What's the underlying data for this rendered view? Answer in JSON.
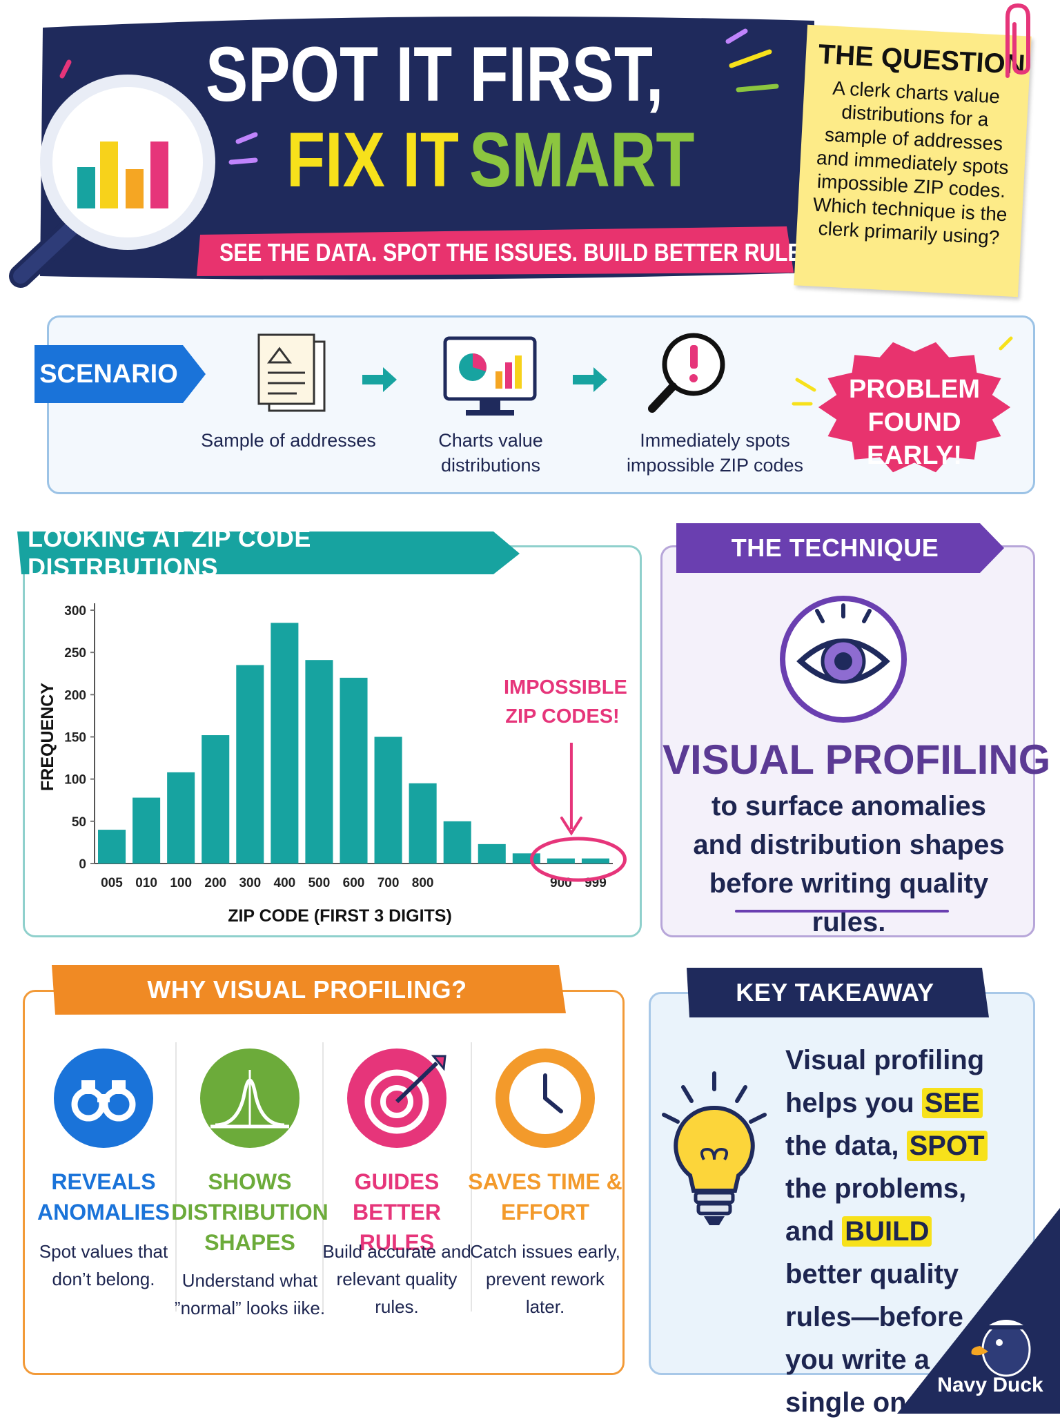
{
  "header": {
    "title_line1": "SPOT IT FIRST,",
    "title_fix": "FIX IT",
    "title_smart": "SMART",
    "tagline": "SEE THE DATA. SPOT THE ISSUES. BUILD BETTER RULES."
  },
  "question": {
    "heading": "THE QUESTION",
    "text": "A clerk charts value distributions for a sample of addresses and immediately spots impossible ZIP codes. Which technique is the clerk primarily using?"
  },
  "scenario": {
    "label": "SCENARIO",
    "steps": [
      "Sample of addresses",
      "Charts value distributions",
      "Immediately spots impossible ZIP codes"
    ],
    "burst": "PROBLEM FOUND EARLY!"
  },
  "chart_data": {
    "type": "bar",
    "title": "LOOKING AT ZIP CODE DISTRBUTIONS",
    "xlabel": "ZIP CODE (FIRST 3 DIGITS)",
    "ylabel": "FREQUENCY",
    "annotation": "IMPOSSIBLE ZIP CODES!",
    "categories": [
      "005",
      "010",
      "100",
      "200",
      "300",
      "400",
      "500",
      "600",
      "700",
      "800",
      null,
      null,
      null,
      "900",
      "999"
    ],
    "values": [
      40,
      78,
      108,
      152,
      235,
      285,
      241,
      220,
      150,
      95,
      50,
      23,
      12,
      6,
      6
    ],
    "color": "#17a3a0",
    "ylim": [
      0,
      300
    ],
    "yticks": [
      0,
      50,
      100,
      150,
      200,
      250,
      300
    ],
    "grid": false
  },
  "technique": {
    "heading": "THE TECHNIQUE",
    "name": "VISUAL PROFILING",
    "text": "to surface anomalies and distribution shapes before writing quality rules."
  },
  "why": {
    "heading": "WHY VISUAL PROFILING?",
    "items": [
      {
        "title": "REVEALS ANOMALIES",
        "text": "Spot values that don’t belong."
      },
      {
        "title": "SHOWS DISTRIBUTION SHAPES",
        "text": "Understand what ”normal” looks iike."
      },
      {
        "title": "GUIDES BETTER RULES",
        "text": "Build accurate and relevant quality rules."
      },
      {
        "title": "SAVES TIME & EFFORT",
        "text": "Catch issues early, prevent rework later."
      }
    ]
  },
  "takeaway": {
    "heading": "KEY TAKEAWAY",
    "parts": [
      "Visual profiling helps you",
      "SEE",
      "the data,",
      "SPOT",
      "the problems, and",
      "BUILD",
      "better quality rules—before you write a single one."
    ]
  },
  "brand": "Navy Duck"
}
